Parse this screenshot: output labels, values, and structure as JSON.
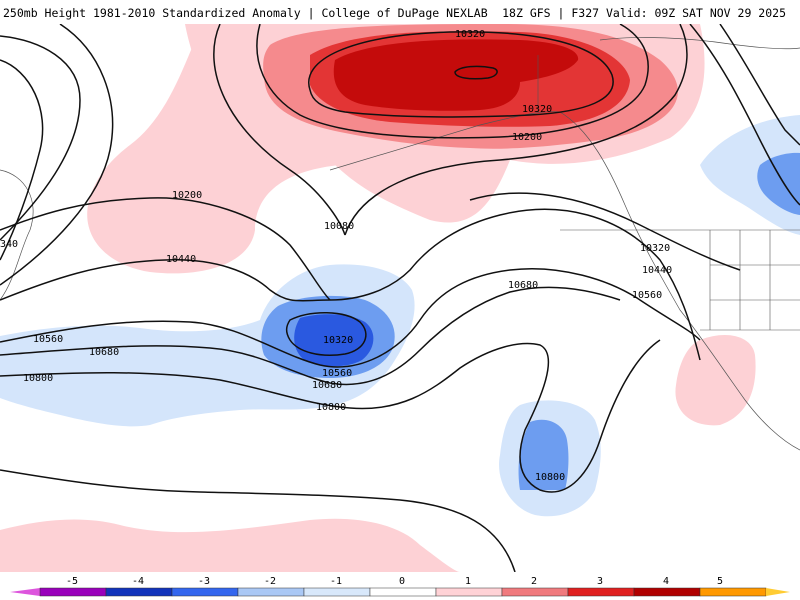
{
  "header": {
    "title_left": "250mb Height 1981-2010 Standardized Anomaly | College of DuPage NEXLAB",
    "title_right": "18Z GFS | F327 Valid: 09Z SAT NOV 29 2025"
  },
  "map": {
    "region": "North Pacific",
    "contour_labels": [
      {
        "id": "c1",
        "text": "10320"
      },
      {
        "id": "c2",
        "text": "10320"
      },
      {
        "id": "c3",
        "text": "10200"
      },
      {
        "id": "c4",
        "text": "10200"
      },
      {
        "id": "c5",
        "text": "10080"
      },
      {
        "id": "c6",
        "text": "10440"
      },
      {
        "id": "c7",
        "text": "10320"
      },
      {
        "id": "c8",
        "text": "10440"
      },
      {
        "id": "c9",
        "text": "10560"
      },
      {
        "id": "c10",
        "text": "10680"
      },
      {
        "id": "c11",
        "text": "10560"
      },
      {
        "id": "c12",
        "text": "10680"
      },
      {
        "id": "c13",
        "text": "10560"
      },
      {
        "id": "c14",
        "text": "10680"
      },
      {
        "id": "c15",
        "text": "10800"
      },
      {
        "id": "c16",
        "text": "10800"
      },
      {
        "id": "c17",
        "text": "10800"
      },
      {
        "id": "c18",
        "text": "10320"
      },
      {
        "id": "c19",
        "text": "340"
      }
    ]
  },
  "legend": {
    "ticks": [
      "-5",
      "-4",
      "-3",
      "-2",
      "-1",
      "0",
      "1",
      "2",
      "3",
      "4",
      "5"
    ],
    "colors": [
      "#dd55dd",
      "#9900bb",
      "#1133bb",
      "#3366ee",
      "#aac8f5",
      "#d8e8fb",
      "#ffffff",
      "#ffd2d6",
      "#f07a7e",
      "#e02020",
      "#b00000",
      "#ff9900",
      "#ffcc33"
    ]
  },
  "colors": {
    "pos1": "#fdd1d5",
    "pos2": "#f58a8d",
    "pos3": "#e33535",
    "pos4": "#c40b0b",
    "neg1": "#d4e5fb",
    "neg2": "#6d9df0",
    "neg3": "#2a59e0"
  }
}
